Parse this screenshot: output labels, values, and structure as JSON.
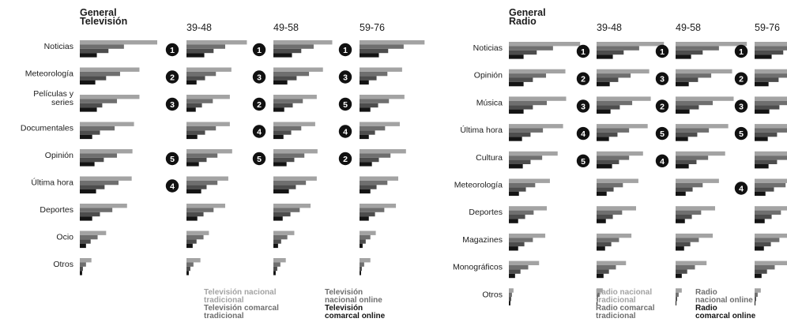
{
  "colors": {
    "series": [
      "#a3a3a3",
      "#6f6f6f",
      "#4d4d4d",
      "#141414"
    ],
    "text": "#1c1c1c",
    "rank_circle": "#111111",
    "rank_text": "#ffffff",
    "legend_light": "#a3a3a3",
    "legend_mid": "#6f6f6f",
    "legend_dark": "#141414"
  },
  "chart_data": [
    {
      "type": "bar",
      "orientation": "horizontal",
      "title": "General\nTelevisión",
      "columns": [
        "General",
        "39-48",
        "49-58",
        "59-76"
      ],
      "series_names": [
        "Televisión nacional tradicional",
        "Televisión comarcal tradicional",
        "Televisión nacional online",
        "Televisión comarcal online"
      ],
      "categories": [
        "Noticias",
        "Meteorología",
        "Películas y\nseries",
        "Documentales",
        "Opinión",
        "Última hora",
        "Deportes",
        "Ocio",
        "Otros"
      ],
      "values": {
        "General": [
          [
            100,
            57,
            37,
            22
          ],
          [
            77,
            52,
            34,
            20
          ],
          [
            77,
            48,
            29,
            22
          ],
          [
            70,
            45,
            26,
            16
          ],
          [
            68,
            48,
            31,
            19
          ],
          [
            67,
            50,
            32,
            21
          ],
          [
            61,
            42,
            26,
            16
          ],
          [
            34,
            23,
            14,
            8
          ],
          [
            15,
            8,
            4,
            3
          ]
        ],
        "39-48": [
          [
            78,
            50,
            35,
            23
          ],
          [
            58,
            38,
            24,
            13
          ],
          [
            56,
            34,
            20,
            12
          ],
          [
            56,
            38,
            24,
            14
          ],
          [
            59,
            40,
            26,
            16
          ],
          [
            54,
            40,
            26,
            19
          ],
          [
            50,
            35,
            22,
            14
          ],
          [
            29,
            22,
            13,
            8
          ],
          [
            18,
            9,
            5,
            3
          ]
        ],
        "49-58": [
          [
            76,
            52,
            36,
            24
          ],
          [
            64,
            46,
            30,
            18
          ],
          [
            56,
            38,
            25,
            14
          ],
          [
            54,
            36,
            23,
            13
          ],
          [
            57,
            40,
            27,
            17
          ],
          [
            56,
            42,
            29,
            20
          ],
          [
            48,
            34,
            22,
            12
          ],
          [
            27,
            18,
            10,
            6
          ],
          [
            16,
            9,
            5,
            3
          ]
        ],
        "59-76": [
          [
            84,
            57,
            37,
            25
          ],
          [
            55,
            36,
            22,
            12
          ],
          [
            58,
            38,
            24,
            14
          ],
          [
            52,
            33,
            20,
            12
          ],
          [
            60,
            40,
            25,
            16
          ],
          [
            50,
            36,
            22,
            14
          ],
          [
            47,
            32,
            20,
            12
          ],
          [
            21,
            14,
            8,
            4
          ],
          [
            14,
            6,
            3,
            2
          ]
        ]
      },
      "ranks": {
        "39-48": [
          1,
          2,
          3,
          null,
          5,
          4,
          null,
          null,
          null
        ],
        "49-58": [
          1,
          3,
          2,
          4,
          5,
          null,
          null,
          null,
          null
        ],
        "59-76": [
          1,
          3,
          5,
          4,
          2,
          null,
          null,
          null,
          null
        ]
      }
    },
    {
      "type": "bar",
      "orientation": "horizontal",
      "title": "General\nRadio",
      "columns": [
        "General",
        "39-48",
        "49-58",
        "59-76"
      ],
      "series_names": [
        "Radio nacional tradicional",
        "Radio comarcal tradicional",
        "Radio nacional online",
        "Radio comarcal online"
      ],
      "categories": [
        "Noticias",
        "Opinión",
        "Música",
        "Última hora",
        "Cultura",
        "Meteorología",
        "Deportes",
        "Magazines",
        "Monográficos",
        "Otros"
      ],
      "values": {
        "General": [
          [
            92,
            57,
            36,
            19
          ],
          [
            73,
            48,
            31,
            19
          ],
          [
            74,
            49,
            31,
            19
          ],
          [
            70,
            44,
            28,
            17
          ],
          [
            63,
            43,
            28,
            18
          ],
          [
            53,
            34,
            22,
            13
          ],
          [
            49,
            32,
            21,
            12
          ],
          [
            47,
            31,
            20,
            12
          ],
          [
            39,
            25,
            15,
            8
          ],
          [
            6,
            4,
            3,
            2
          ]
        ],
        "39-48": [
          [
            87,
            55,
            35,
            21
          ],
          [
            68,
            44,
            28,
            17
          ],
          [
            70,
            46,
            30,
            18
          ],
          [
            66,
            42,
            27,
            16
          ],
          [
            60,
            42,
            29,
            20
          ],
          [
            54,
            34,
            22,
            13
          ],
          [
            51,
            33,
            21,
            12
          ],
          [
            45,
            29,
            19,
            11
          ],
          [
            38,
            25,
            16,
            9
          ],
          [
            8,
            4,
            2,
            1
          ]
        ],
        "49-58": [
          [
            92,
            56,
            35,
            20
          ],
          [
            73,
            46,
            29,
            17
          ],
          [
            75,
            48,
            30,
            18
          ],
          [
            68,
            43,
            28,
            16
          ],
          [
            64,
            42,
            27,
            17
          ],
          [
            56,
            35,
            22,
            13
          ],
          [
            51,
            33,
            21,
            12
          ],
          [
            48,
            30,
            19,
            11
          ],
          [
            40,
            25,
            15,
            8
          ],
          [
            8,
            4,
            2,
            1
          ]
        ],
        "59-76": [
          [
            96,
            59,
            37,
            22
          ],
          [
            76,
            49,
            31,
            18
          ],
          [
            79,
            50,
            32,
            19
          ],
          [
            71,
            45,
            29,
            17
          ],
          [
            66,
            44,
            29,
            18
          ],
          [
            63,
            40,
            25,
            14
          ],
          [
            53,
            34,
            22,
            13
          ],
          [
            51,
            32,
            21,
            12
          ],
          [
            42,
            26,
            16,
            9
          ],
          [
            8,
            4,
            2,
            1
          ]
        ]
      },
      "ranks": {
        "39-48": [
          1,
          2,
          3,
          4,
          5,
          null,
          null,
          null,
          null,
          null
        ],
        "49-58": [
          1,
          3,
          2,
          5,
          4,
          null,
          null,
          null,
          null,
          null
        ],
        "59-76": [
          1,
          2,
          3,
          5,
          null,
          4,
          null,
          null,
          null,
          null
        ]
      }
    }
  ],
  "legend_tv": {
    "nacional_tradicional": "Televisión nacional\ntradicional",
    "comarcal_tradicional": "Televisión comarcal\ntradicional",
    "nacional_online": "Televisión\nnacional online",
    "comarcal_online": "Televisión\ncomarcal online"
  },
  "legend_radio": {
    "nacional_tradicional": "Radio nacional\ntradicional",
    "comarcal_tradicional": "Radio comarcal\ntradicional",
    "nacional_online": "Radio\nnacional online",
    "comarcal_online": "Radio\ncomarcal online"
  }
}
